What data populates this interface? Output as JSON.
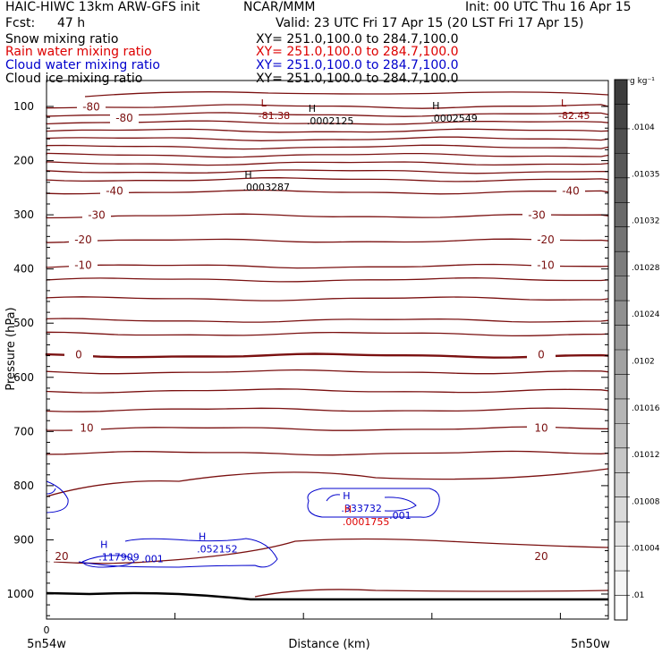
{
  "header": {
    "model": "HAIC-HIWC 13km ARW-GFS init",
    "center": "NCAR/MMM",
    "init": "Init: 00 UTC Thu 16 Apr 15",
    "fcst_label": "Fcst:",
    "fcst_value": "47 h",
    "valid": "Valid: 23 UTC Fri 17 Apr 15 (20 LST Fri 17 Apr 15)"
  },
  "fields": [
    {
      "name": "Snow mixing ratio",
      "xy": "XY= 251.0,100.0 to 284.7,100.0",
      "color": "#000000"
    },
    {
      "name": "Rain water mixing ratio",
      "xy": "XY= 251.0,100.0 to 284.7,100.0",
      "color": "#dd0000"
    },
    {
      "name": "Cloud water mixing ratio",
      "xy": "XY= 251.0,100.0 to 284.7,100.0",
      "color": "#0000cc"
    },
    {
      "name": "Cloud ice mixing ratio",
      "xy": "XY= 251.0,100.0 to 284.7,100.0",
      "color": "#000000"
    }
  ],
  "colorbar": {
    "unit": "g kg⁻¹",
    "labels": [
      ".0104",
      ".01035",
      ".01032",
      ".01028",
      ".01024",
      ".0102",
      ".01016",
      ".01012",
      ".01008",
      ".01004",
      ".01"
    ]
  },
  "chart_data": {
    "type": "contour",
    "ylabel": "Pressure (hPa)",
    "xlabel": "Distance (km)",
    "y_ticks": [
      100,
      200,
      300,
      400,
      500,
      600,
      700,
      800,
      900,
      1000
    ],
    "y_range": [
      1050,
      70
    ],
    "x_range": [
      0,
      4.4
    ],
    "x_tick_labels": [
      {
        "x": 0,
        "label": "0"
      }
    ],
    "x_end_labels": [
      "5n54w",
      "5n50w"
    ],
    "temperature_contours": [
      {
        "label": "-80",
        "p": 88
      },
      {
        "label": "-80",
        "p": 110
      },
      {
        "label": "-40",
        "p": 258
      },
      {
        "label": "-30",
        "p": 302
      },
      {
        "label": "-20",
        "p": 348
      },
      {
        "label": "-10",
        "p": 395
      },
      {
        "label": "0",
        "p": 560
      },
      {
        "label": "10",
        "p": 695
      },
      {
        "label": "20",
        "p": 932
      }
    ],
    "extrema_labels": [
      {
        "type": "L",
        "value": "-81.38",
        "x": 1.7,
        "p": 110,
        "color": "#880000"
      },
      {
        "type": "L",
        "value": "-82.45",
        "x": 4.05,
        "p": 110,
        "color": "#880000"
      },
      {
        "type": "H",
        "value": ".0002125",
        "x": 2.08,
        "p": 120,
        "color": "#000000"
      },
      {
        "type": "H",
        "value": ".0002549",
        "x": 3.05,
        "p": 115,
        "color": "#000000"
      },
      {
        "type": "H",
        "value": ".0003287",
        "x": 1.58,
        "p": 242,
        "color": "#000000"
      },
      {
        "type": "H",
        "value": ".333732",
        "x": 2.35,
        "p": 835,
        "color": "#0000cc"
      },
      {
        "type": "H",
        "value": ".0001755",
        "x": 2.36,
        "p": 860,
        "color": "#dd0000"
      },
      {
        "type": "H",
        "value": ".117909",
        "x": 0.45,
        "p": 925,
        "color": "#0000cc"
      },
      {
        "type": "H",
        "value": ".052152",
        "x": 1.22,
        "p": 910,
        "color": "#0000cc"
      }
    ],
    "cloud_water_labels": [
      {
        "value": ".001",
        "x": 2.77,
        "p": 855
      },
      {
        "value": ".001",
        "x": 0.83,
        "p": 935
      }
    ]
  }
}
